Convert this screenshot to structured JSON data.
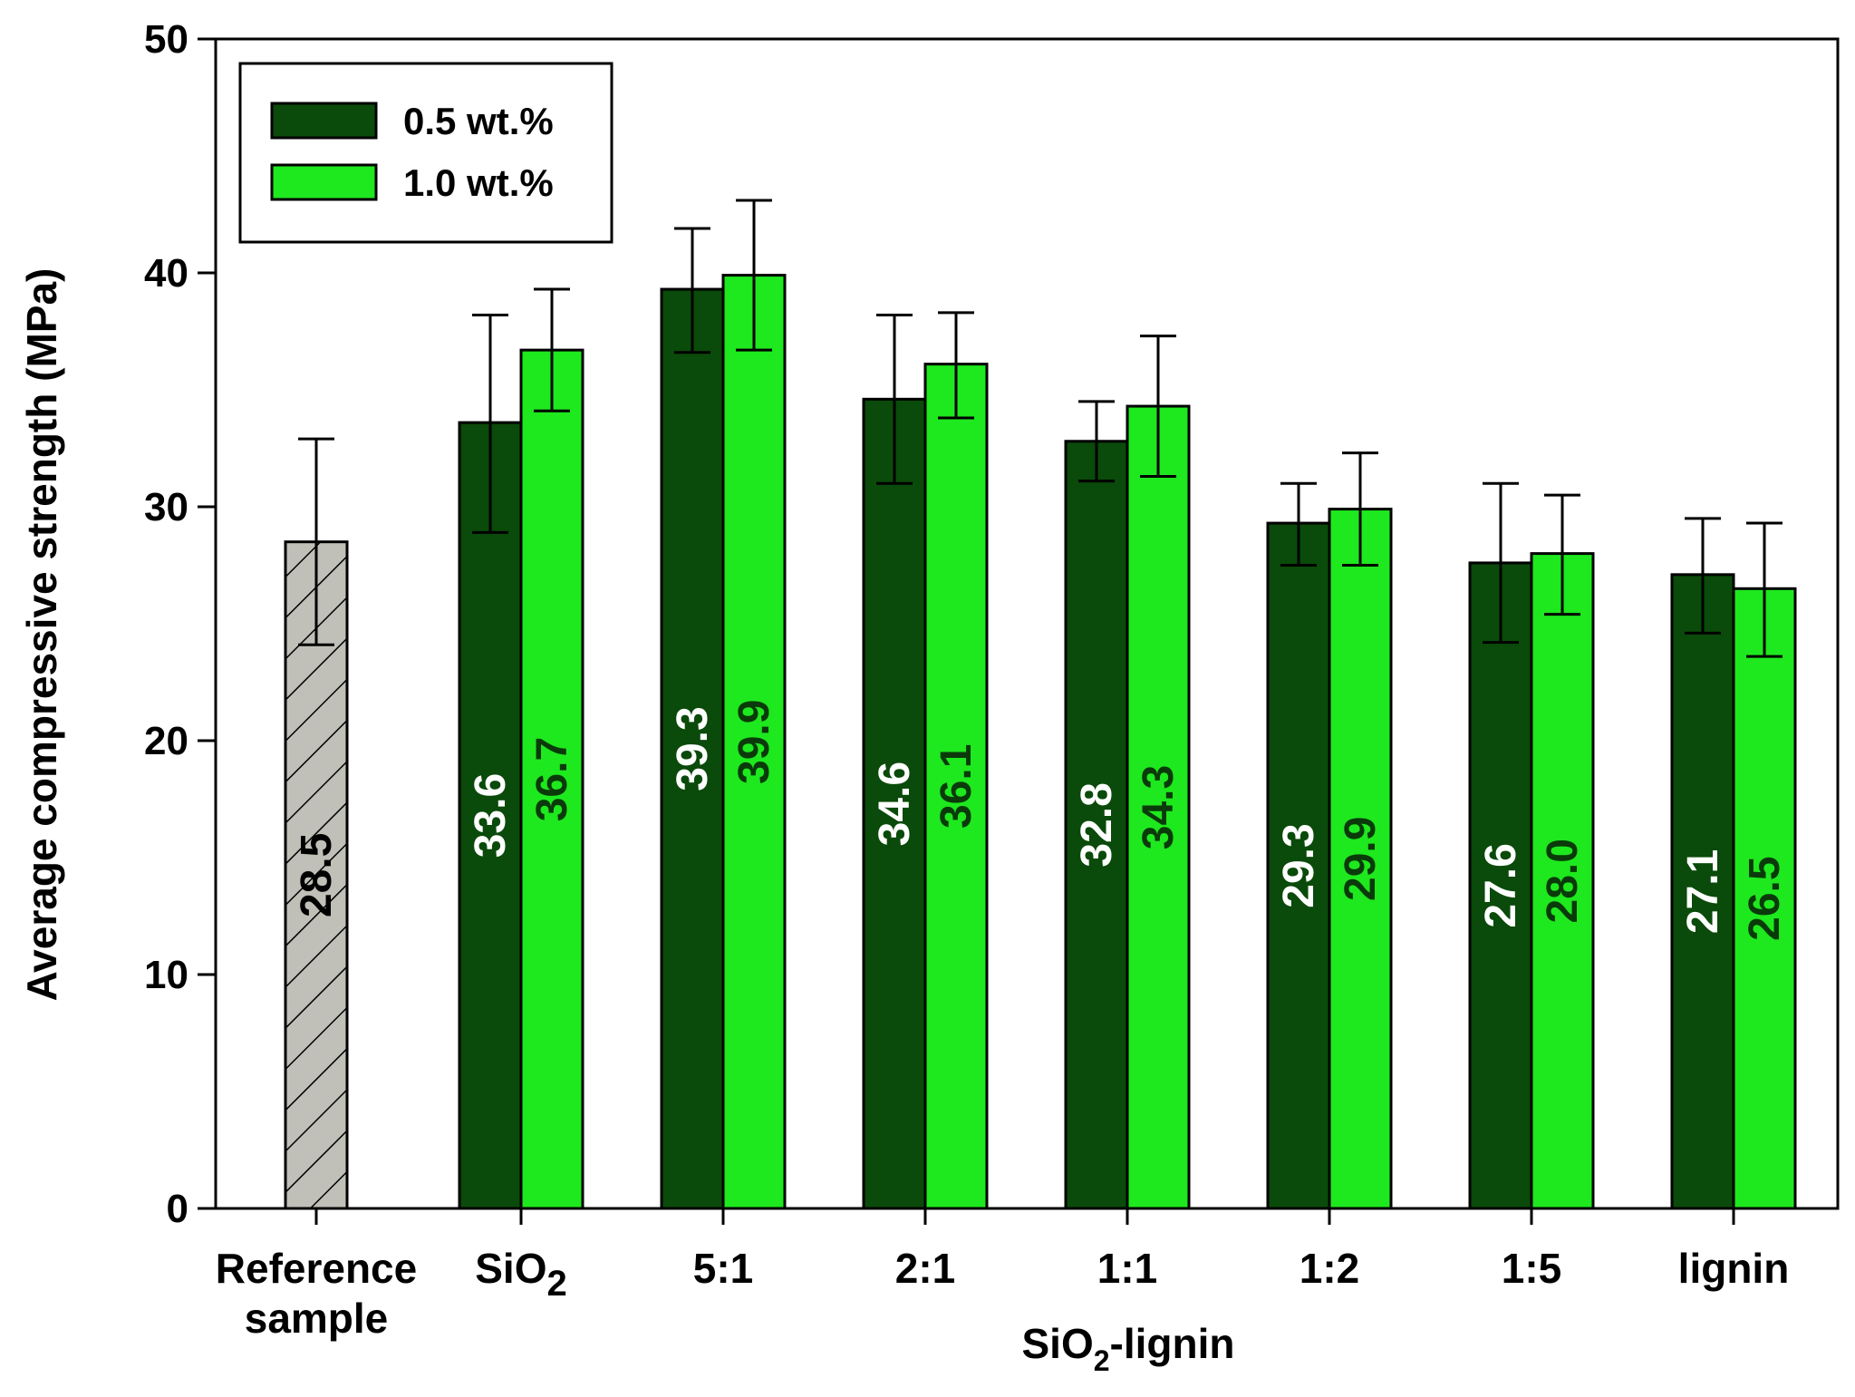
{
  "chart_data": {
    "type": "bar",
    "ylabel": "Average compressive strength (MPa)",
    "xlabel": "SiO2-lignin",
    "xlabel_parts": {
      "pre": "SiO",
      "sub": "2",
      "post": "-lignin"
    },
    "ylim": [
      0,
      50
    ],
    "yticks": [
      0,
      10,
      20,
      30,
      40,
      50
    ],
    "grid": false,
    "legend_position": "top-left",
    "reference": {
      "label_line1": "Reference",
      "label_line2": "sample",
      "value": 28.5,
      "value_label": "28.5",
      "error": [
        24.1,
        32.9
      ],
      "fill": "#c0c0b8",
      "pattern": "hatched"
    },
    "categories": [
      "SiO2",
      "5:1",
      "2:1",
      "1:1",
      "1:2",
      "1:5",
      "lignin"
    ],
    "category_labels": [
      {
        "pre": "SiO",
        "sub": "2"
      },
      {
        "pre": "5:1",
        "sub": ""
      },
      {
        "pre": "2:1",
        "sub": ""
      },
      {
        "pre": "1:1",
        "sub": ""
      },
      {
        "pre": "1:2",
        "sub": ""
      },
      {
        "pre": "1:5",
        "sub": ""
      },
      {
        "pre": "lignin",
        "sub": ""
      }
    ],
    "series": [
      {
        "name": "0.5 wt.%",
        "color": "#0a4a0a",
        "label_color": "#ffffff",
        "values": [
          33.6,
          39.3,
          34.6,
          32.8,
          29.3,
          27.6,
          27.1
        ],
        "value_labels": [
          "33.6",
          "39.3",
          "34.6",
          "32.8",
          "29.3",
          "27.6",
          "27.1"
        ],
        "err_low": [
          28.9,
          36.6,
          31.0,
          31.1,
          27.5,
          24.2,
          24.6
        ],
        "err_high": [
          38.2,
          41.9,
          38.2,
          34.5,
          31.0,
          31.0,
          29.5
        ]
      },
      {
        "name": "1.0 wt.%",
        "color": "#1ee81e",
        "label_color": "#0a3a0a",
        "values": [
          36.7,
          39.9,
          36.1,
          34.3,
          29.9,
          28.0,
          26.5
        ],
        "value_labels": [
          "36.7",
          "39.9",
          "36.1",
          "34.3",
          "29.9",
          "28.0",
          "26.5"
        ],
        "err_low": [
          34.1,
          36.7,
          33.8,
          31.3,
          27.5,
          25.4,
          23.6
        ],
        "err_high": [
          39.3,
          43.1,
          38.3,
          37.3,
          32.3,
          30.5,
          29.3
        ]
      }
    ]
  }
}
